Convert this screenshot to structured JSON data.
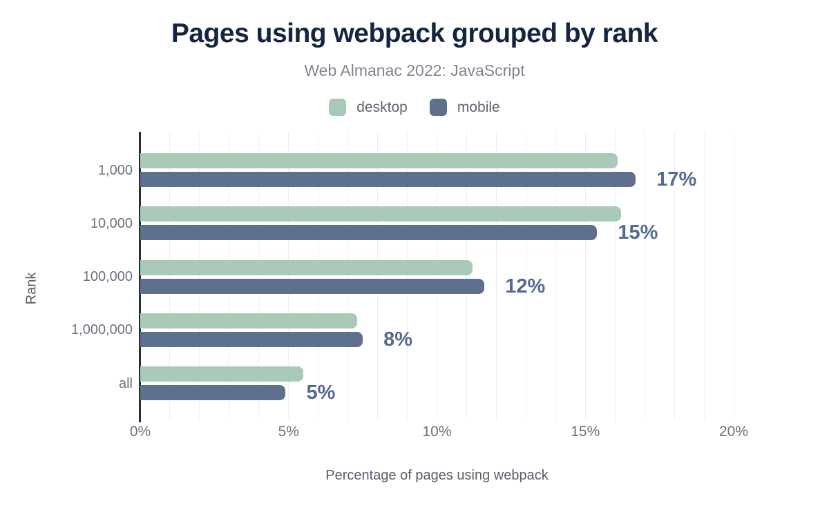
{
  "chart_data": {
    "type": "bar",
    "orientation": "horizontal",
    "title": "Pages using webpack grouped by rank",
    "subtitle": "Web Almanac 2022: JavaScript",
    "xlabel": "Percentage of pages using webpack",
    "ylabel": "Rank",
    "categories": [
      "1,000",
      "10,000",
      "100,000",
      "1,000,000",
      "all"
    ],
    "series": [
      {
        "name": "desktop",
        "color": "#a9cab8",
        "values": [
          16.1,
          16.2,
          11.2,
          7.3,
          5.5
        ]
      },
      {
        "name": "mobile",
        "color": "#5e708d",
        "values": [
          16.7,
          15.4,
          11.6,
          7.5,
          4.9
        ]
      }
    ],
    "value_labels": [
      "17%",
      "15%",
      "12%",
      "8%",
      "5%"
    ],
    "value_labels_series": "mobile",
    "xlim": [
      0,
      20
    ],
    "xticks": [
      "0%",
      "5%",
      "10%",
      "15%",
      "20%"
    ],
    "xtick_interval_pct": 5,
    "grid": "vertical minor gridlines every 1%",
    "legend_position": "top",
    "style": {
      "background": "#ffffff",
      "title": "#16253f",
      "subtitle": "#80868f",
      "legend_label": "#5e646e",
      "tick_label": "#6b727d",
      "axis_title": "#575e68",
      "value_label": "#546a92",
      "gridline": "#eeeff2",
      "axis_line": "#262e3a"
    }
  }
}
